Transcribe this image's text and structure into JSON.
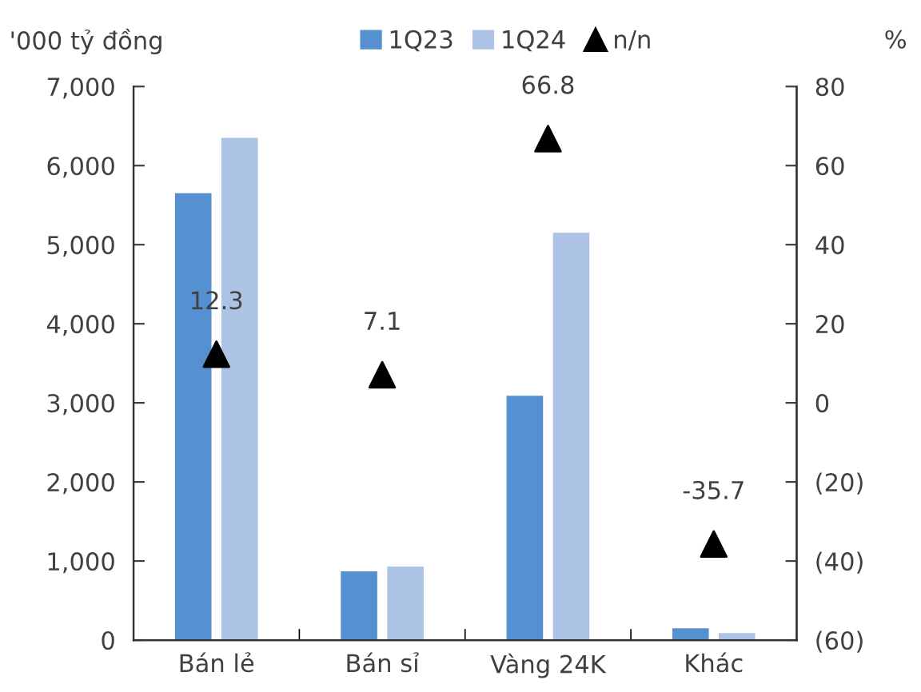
{
  "chart_data": {
    "type": "bar",
    "ylabel": "'000 tỷ đồng",
    "y2label": "%",
    "categories": [
      "Bán lẻ",
      "Bán sỉ",
      "Vàng 24K",
      "Khác"
    ],
    "series": [
      {
        "name": "1Q23",
        "color": "#5591d0",
        "values": [
          5650,
          870,
          3090,
          150
        ]
      },
      {
        "name": "1Q24",
        "color": "#adc3e6",
        "values": [
          6350,
          930,
          5150,
          90
        ]
      },
      {
        "name": "n/n",
        "type": "scatter",
        "axis": "y2",
        "color": "#000000",
        "marker": "triangle",
        "data_labels": true,
        "values": [
          12.3,
          7.1,
          66.8,
          -35.7
        ]
      }
    ],
    "ylim": [
      0,
      7000
    ],
    "yticks": [
      {
        "value": 0,
        "label": "0"
      },
      {
        "value": 1000,
        "label": "1,000"
      },
      {
        "value": 2000,
        "label": "2,000"
      },
      {
        "value": 3000,
        "label": "3,000"
      },
      {
        "value": 4000,
        "label": "4,000"
      },
      {
        "value": 5000,
        "label": "5,000"
      },
      {
        "value": 6000,
        "label": "6,000"
      },
      {
        "value": 7000,
        "label": "7,000"
      }
    ],
    "y2lim": [
      -60,
      80
    ],
    "y2ticks": [
      {
        "value": -60,
        "label": "(60)"
      },
      {
        "value": -40,
        "label": "(40)"
      },
      {
        "value": -20,
        "label": "(20)"
      },
      0,
      20,
      40,
      60,
      80
    ],
    "legend": "top",
    "grid": false
  }
}
